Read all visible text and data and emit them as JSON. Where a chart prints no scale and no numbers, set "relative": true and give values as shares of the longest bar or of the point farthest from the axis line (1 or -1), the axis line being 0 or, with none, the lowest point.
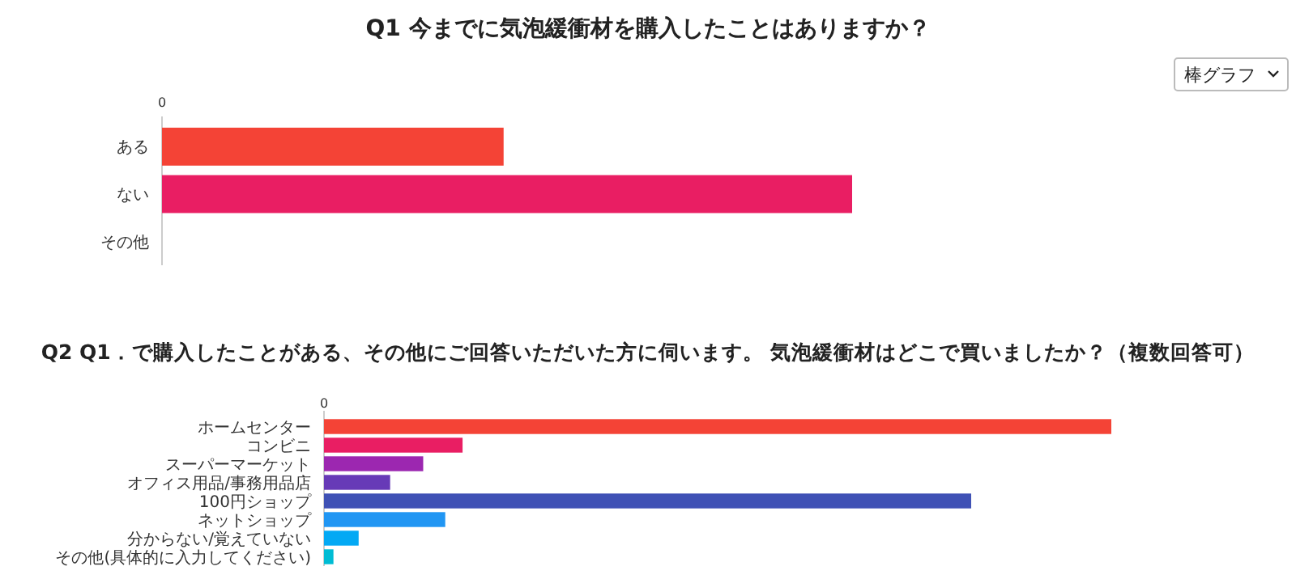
{
  "chart_data": [
    {
      "type": "bar",
      "orientation": "horizontal",
      "relative": true,
      "title": "Q1 今までに気泡緩衝材を購入したことはありますか？",
      "categories": [
        "ある",
        "ない",
        "その他"
      ],
      "values": [
        0.495,
        1,
        0
      ],
      "colors": [
        "#f44336",
        "#e91e63",
        "#9c27b0"
      ],
      "annotations": [
        "0",
        "棒グラフ"
      ]
    },
    {
      "type": "bar",
      "orientation": "horizontal",
      "relative": true,
      "title": "Q2 Q1．で購入したことがある、その他にご回答いただいた方に伺います。 気泡緩衝材はどこで買いましたか？（複数回答可）",
      "categories": [
        "ホームセンター",
        "コンビニ",
        "スーパーマーケット",
        "オフィス用品/事務用品店",
        "100円ショップ",
        "ネットショップ",
        "分からない/覚えていない",
        "その他(具体的に入力してください)"
      ],
      "values": [
        1,
        0.176,
        0.126,
        0.084,
        0.822,
        0.154,
        0.044,
        0.012
      ],
      "colors": [
        "#f44336",
        "#e91e63",
        "#9c27b0",
        "#673ab7",
        "#3f51b5",
        "#2196f3",
        "#03a9f4",
        "#00bcd4"
      ],
      "annotations": [
        "0"
      ]
    }
  ]
}
